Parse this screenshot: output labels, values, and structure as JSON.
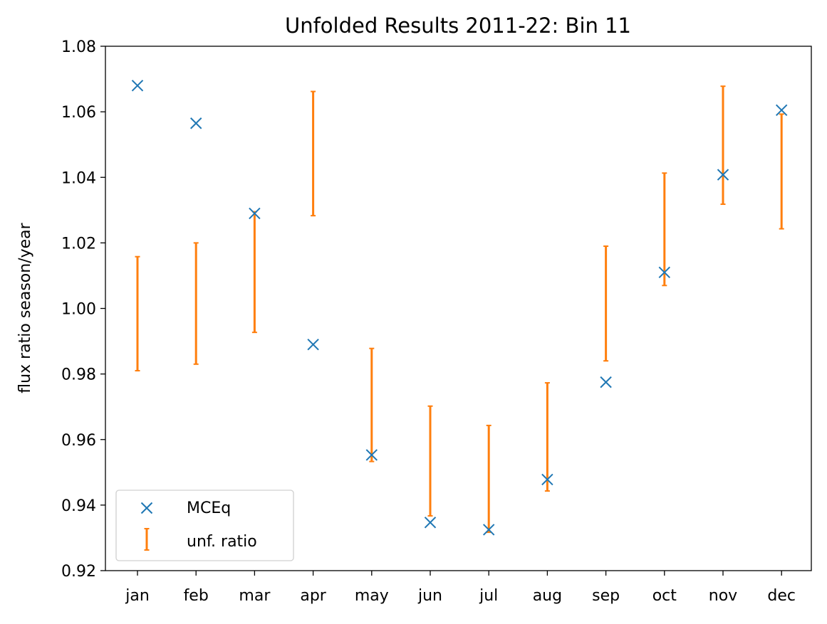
{
  "chart_data": {
    "type": "scatter",
    "title": "Unfolded Results 2011-22: Bin 11",
    "xlabel": "",
    "ylabel": "flux ratio season/year",
    "categories": [
      "jan",
      "feb",
      "mar",
      "apr",
      "may",
      "jun",
      "jul",
      "aug",
      "sep",
      "oct",
      "nov",
      "dec"
    ],
    "ylim": [
      0.92,
      1.08
    ],
    "yticks": [
      "0.92",
      "0.94",
      "0.96",
      "0.98",
      "1.00",
      "1.02",
      "1.04",
      "1.06",
      "1.08"
    ],
    "grid": false,
    "legend_position": "lower-left",
    "series": [
      {
        "name": "MCEq",
        "kind": "marker-x",
        "color": "#1f77b4",
        "values": [
          1.068,
          1.0565,
          1.029,
          0.989,
          0.9553,
          0.9347,
          0.9325,
          0.9478,
          0.9775,
          1.011,
          1.0408,
          1.0605
        ]
      },
      {
        "name": "unf. ratio",
        "kind": "errorbar",
        "color": "#ff7f0e",
        "low": [
          0.981,
          0.983,
          0.9927,
          1.0283,
          0.9533,
          0.9367,
          0.9317,
          0.9443,
          0.984,
          1.007,
          1.0318,
          1.0243
        ],
        "high": [
          1.0158,
          1.02,
          1.0295,
          1.0662,
          0.9878,
          0.9702,
          0.9643,
          0.9773,
          1.019,
          1.0413,
          1.0678,
          1.0593
        ]
      }
    ]
  }
}
